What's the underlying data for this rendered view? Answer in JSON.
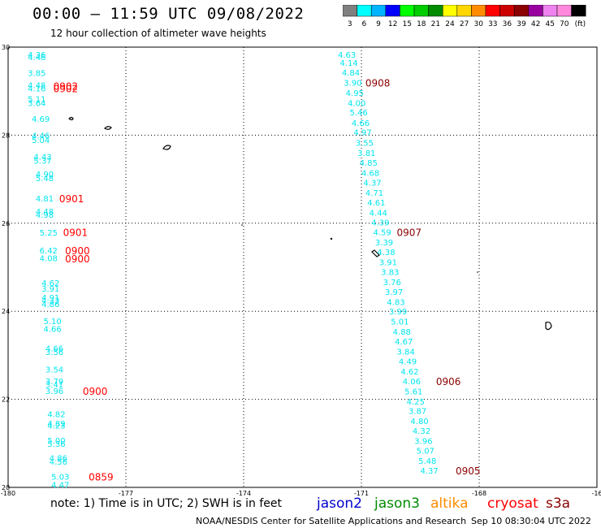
{
  "header": {
    "title": "00:00 – 11:59 UTC 09/08/2022",
    "subtitle": "12 hour collection of altimeter wave heights"
  },
  "colorbar": {
    "colors": [
      "#808080",
      "#00ffff",
      "#00b4ff",
      "#0000ff",
      "#00ff00",
      "#00cd00",
      "#008b00",
      "#ffff00",
      "#ffd700",
      "#ff8c00",
      "#ff0000",
      "#cd0000",
      "#8b0000",
      "#9900a0",
      "#ee82ee",
      "#ff88dd",
      "#000000"
    ],
    "labels": [
      "3",
      "6",
      "9",
      "12",
      "15",
      "18",
      "21",
      "24",
      "27",
      "30",
      "33",
      "36",
      "39",
      "42",
      "45",
      "70",
      "(ft)"
    ]
  },
  "map": {
    "lon_range": [
      -180,
      -165
    ],
    "lat_range": [
      20,
      30
    ],
    "lon_ticks": [
      "-180",
      "-177",
      "-174",
      "-171",
      "-168",
      "-16"
    ],
    "lat_ticks": [
      "30",
      "28",
      "26",
      "24",
      "22",
      "20"
    ],
    "swh_color": "#00e5ee",
    "time_color_cryosat": "#ff0000",
    "time_color_s3a": "#8b0000",
    "track_left": {
      "points": [
        {
          "lon": -179.5,
          "lat": 29.83,
          "v": "4.36"
        },
        {
          "lon": -179.5,
          "lat": 29.78,
          "v": "4.46"
        },
        {
          "lon": -179.5,
          "lat": 29.42,
          "v": "3.85"
        },
        {
          "lon": -179.5,
          "lat": 29.14,
          "v": "4.48"
        },
        {
          "lon": -179.5,
          "lat": 29.07,
          "v": "4.16"
        },
        {
          "lon": -179.5,
          "lat": 28.83,
          "v": "5.11"
        },
        {
          "lon": -179.5,
          "lat": 28.74,
          "v": "3.64"
        },
        {
          "lon": -179.4,
          "lat": 28.38,
          "v": "4.69"
        },
        {
          "lon": -179.4,
          "lat": 28.0,
          "v": "4.46"
        },
        {
          "lon": -179.4,
          "lat": 27.9,
          "v": "5.04"
        },
        {
          "lon": -179.35,
          "lat": 27.52,
          "v": "4.43"
        },
        {
          "lon": -179.35,
          "lat": 27.43,
          "v": "5.37"
        },
        {
          "lon": -179.3,
          "lat": 27.12,
          "v": "4.90"
        },
        {
          "lon": -179.3,
          "lat": 27.03,
          "v": "5.48"
        },
        {
          "lon": -179.3,
          "lat": 26.57,
          "v": "4.81"
        },
        {
          "lon": -179.3,
          "lat": 26.27,
          "v": "4.48"
        },
        {
          "lon": -179.3,
          "lat": 26.2,
          "v": "4.98"
        },
        {
          "lon": -179.2,
          "lat": 25.79,
          "v": "5.25"
        },
        {
          "lon": -179.2,
          "lat": 25.39,
          "v": "6.42"
        },
        {
          "lon": -179.2,
          "lat": 25.21,
          "v": "4.08"
        },
        {
          "lon": -179.15,
          "lat": 24.65,
          "v": "4.62"
        },
        {
          "lon": -179.15,
          "lat": 24.52,
          "v": "3.91"
        },
        {
          "lon": -179.15,
          "lat": 24.32,
          "v": "4.91"
        },
        {
          "lon": -179.15,
          "lat": 24.25,
          "v": "4.33"
        },
        {
          "lon": -179.15,
          "lat": 24.17,
          "v": "4.86"
        },
        {
          "lon": -179.1,
          "lat": 23.78,
          "v": "5.10"
        },
        {
          "lon": -179.1,
          "lat": 23.61,
          "v": "4.66"
        },
        {
          "lon": -179.05,
          "lat": 23.16,
          "v": "4.66"
        },
        {
          "lon": -179.05,
          "lat": 23.08,
          "v": "3.56"
        },
        {
          "lon": -179.05,
          "lat": 22.68,
          "v": "3.54"
        },
        {
          "lon": -179.05,
          "lat": 22.42,
          "v": "3.79"
        },
        {
          "lon": -179.05,
          "lat": 22.34,
          "v": "3.41"
        },
        {
          "lon": -179.05,
          "lat": 22.2,
          "v": "3.96"
        },
        {
          "lon": -179.0,
          "lat": 21.67,
          "v": "4.82"
        },
        {
          "lon": -179.0,
          "lat": 21.46,
          "v": "4.89"
        },
        {
          "lon": -179.0,
          "lat": 21.41,
          "v": "4.23"
        },
        {
          "lon": -179.0,
          "lat": 21.07,
          "v": "5.00"
        },
        {
          "lon": -179.0,
          "lat": 21.0,
          "v": "5.36"
        },
        {
          "lon": -178.95,
          "lat": 20.67,
          "v": "4.86"
        },
        {
          "lon": -178.95,
          "lat": 20.59,
          "v": "4.56"
        },
        {
          "lon": -178.9,
          "lat": 20.25,
          "v": "5.03"
        },
        {
          "lon": -178.9,
          "lat": 20.06,
          "v": "4.47"
        }
      ],
      "times": [
        {
          "lon": -178.85,
          "lat": 29.12,
          "t": "0902"
        },
        {
          "lon": -178.85,
          "lat": 29.07,
          "t": "0902"
        },
        {
          "lon": -178.7,
          "lat": 26.57,
          "t": "0901"
        },
        {
          "lon": -178.6,
          "lat": 25.8,
          "t": "0901"
        },
        {
          "lon": -178.55,
          "lat": 25.39,
          "t": "0900"
        },
        {
          "lon": -178.55,
          "lat": 25.2,
          "t": "0900"
        },
        {
          "lon": -178.1,
          "lat": 22.2,
          "t": "0900"
        },
        {
          "lon": -177.95,
          "lat": 20.25,
          "t": "0859"
        }
      ]
    },
    "track_right": {
      "points": [
        {
          "lon": -171.6,
          "lat": 29.83,
          "v": "4.63"
        },
        {
          "lon": -171.55,
          "lat": 29.65,
          "v": "4.14"
        },
        {
          "lon": -171.5,
          "lat": 29.43,
          "v": "4.84"
        },
        {
          "lon": -171.45,
          "lat": 29.2,
          "v": "3.90"
        },
        {
          "lon": -171.4,
          "lat": 28.97,
          "v": "4.95"
        },
        {
          "lon": -171.35,
          "lat": 28.74,
          "v": "4.00"
        },
        {
          "lon": -171.3,
          "lat": 28.52,
          "v": "5.46"
        },
        {
          "lon": -171.25,
          "lat": 28.28,
          "v": "4.66"
        },
        {
          "lon": -171.2,
          "lat": 28.07,
          "v": "4.97"
        },
        {
          "lon": -171.15,
          "lat": 27.83,
          "v": "3.55"
        },
        {
          "lon": -171.1,
          "lat": 27.6,
          "v": "3.81"
        },
        {
          "lon": -171.05,
          "lat": 27.38,
          "v": "4.85"
        },
        {
          "lon": -171.0,
          "lat": 27.15,
          "v": "4.68"
        },
        {
          "lon": -170.95,
          "lat": 26.93,
          "v": "4.37"
        },
        {
          "lon": -170.9,
          "lat": 26.7,
          "v": "4.71"
        },
        {
          "lon": -170.85,
          "lat": 26.48,
          "v": "4.61"
        },
        {
          "lon": -170.8,
          "lat": 26.25,
          "v": "4.44"
        },
        {
          "lon": -170.75,
          "lat": 26.02,
          "v": "4.39"
        },
        {
          "lon": -170.7,
          "lat": 25.8,
          "v": "4.59"
        },
        {
          "lon": -170.65,
          "lat": 25.57,
          "v": "3.39"
        },
        {
          "lon": -170.6,
          "lat": 25.35,
          "v": "4.38"
        },
        {
          "lon": -170.55,
          "lat": 25.12,
          "v": "3.91"
        },
        {
          "lon": -170.5,
          "lat": 24.9,
          "v": "3.83"
        },
        {
          "lon": -170.45,
          "lat": 24.67,
          "v": "3.76"
        },
        {
          "lon": -170.4,
          "lat": 24.45,
          "v": "3.97"
        },
        {
          "lon": -170.35,
          "lat": 24.22,
          "v": "4.83"
        },
        {
          "lon": -170.3,
          "lat": 24.0,
          "v": "3.99"
        },
        {
          "lon": -170.25,
          "lat": 23.77,
          "v": "5.01"
        },
        {
          "lon": -170.2,
          "lat": 23.54,
          "v": "4.88"
        },
        {
          "lon": -170.15,
          "lat": 23.32,
          "v": "4.67"
        },
        {
          "lon": -170.1,
          "lat": 23.09,
          "v": "3.84"
        },
        {
          "lon": -170.05,
          "lat": 22.87,
          "v": "4.49"
        },
        {
          "lon": -170.0,
          "lat": 22.64,
          "v": "4.62"
        },
        {
          "lon": -169.95,
          "lat": 22.42,
          "v": "4.06"
        },
        {
          "lon": -169.9,
          "lat": 22.19,
          "v": "5.61"
        },
        {
          "lon": -169.85,
          "lat": 21.96,
          "v": "4.25"
        },
        {
          "lon": -169.8,
          "lat": 21.74,
          "v": "3.87"
        },
        {
          "lon": -169.75,
          "lat": 21.51,
          "v": "4.80"
        },
        {
          "lon": -169.7,
          "lat": 21.29,
          "v": "4.32"
        },
        {
          "lon": -169.65,
          "lat": 21.06,
          "v": "3.96"
        },
        {
          "lon": -169.6,
          "lat": 20.84,
          "v": "5.07"
        },
        {
          "lon": -169.55,
          "lat": 20.61,
          "v": "5.48"
        },
        {
          "lon": -169.5,
          "lat": 20.39,
          "v": "4.37"
        }
      ],
      "times": [
        {
          "lon": -170.9,
          "lat": 29.2,
          "t": "0908"
        },
        {
          "lon": -170.1,
          "lat": 25.8,
          "t": "0907"
        },
        {
          "lon": -169.1,
          "lat": 22.42,
          "t": "0906"
        },
        {
          "lon": -168.6,
          "lat": 20.39,
          "t": "0905"
        }
      ]
    }
  },
  "footer": {
    "note": "note: 1) Time is in UTC; 2) SWH is in feet",
    "satellites": [
      {
        "name": "jason2",
        "color": "#0000cd"
      },
      {
        "name": "jason3",
        "color": "#008b00"
      },
      {
        "name": "altika",
        "color": "#ff8c00"
      },
      {
        "name": "cryosat",
        "color": "#ff0000"
      },
      {
        "name": "s3a",
        "color": "#8b0000"
      }
    ],
    "credit": "NOAA/NESDIS Center for Satellite Applications and Research",
    "timestamp": "Sep 10 08:30:04 UTC 2022"
  }
}
